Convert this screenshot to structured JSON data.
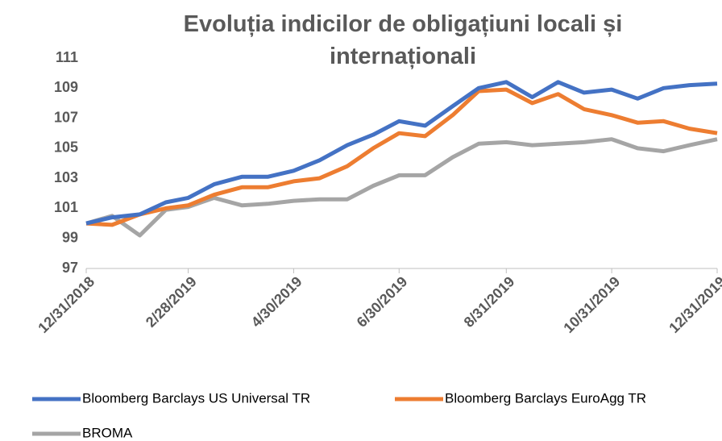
{
  "chart_data": {
    "type": "line",
    "title": "Evoluția indicilor de obligațiuni locali și internaționali",
    "x": [
      "12/31/2018",
      "1/15/2019",
      "1/31/2019",
      "2/15/2019",
      "2/28/2019",
      "3/15/2019",
      "3/31/2019",
      "4/15/2019",
      "4/30/2019",
      "5/15/2019",
      "5/31/2019",
      "6/15/2019",
      "6/30/2019",
      "7/15/2019",
      "7/31/2019",
      "8/15/2019",
      "8/31/2019",
      "9/15/2019",
      "9/30/2019",
      "10/15/2019",
      "10/31/2019",
      "11/15/2019",
      "11/30/2019",
      "12/15/2019",
      "12/31/2019"
    ],
    "series": [
      {
        "name": "Bloomberg Barclays US Universal TR",
        "color": "#4472c4",
        "values": [
          100,
          100.4,
          100.6,
          101.4,
          101.7,
          102.6,
          103.1,
          103.1,
          103.5,
          104.2,
          105.2,
          105.9,
          106.8,
          106.5,
          107.8,
          109.0,
          109.4,
          108.4,
          109.4,
          108.7,
          108.9,
          108.3,
          109.0,
          109.2,
          109.3
        ]
      },
      {
        "name": "Bloomberg Barclays EuroAgg TR",
        "color": "#ed7d31",
        "values": [
          100,
          99.9,
          100.6,
          101.0,
          101.2,
          101.9,
          102.4,
          102.4,
          102.8,
          103.0,
          103.8,
          105.0,
          106.0,
          105.8,
          107.2,
          108.8,
          108.9,
          108.0,
          108.6,
          107.6,
          107.2,
          106.7,
          106.8,
          106.3,
          106.0
        ]
      },
      {
        "name": "BROMA",
        "color": "#a5a5a5",
        "values": [
          100,
          100.5,
          99.2,
          100.9,
          101.1,
          101.7,
          101.2,
          101.3,
          101.5,
          101.6,
          101.6,
          102.5,
          103.2,
          103.2,
          104.4,
          105.3,
          105.4,
          105.2,
          105.3,
          105.4,
          105.6,
          105.0,
          104.8,
          105.2,
          105.6
        ]
      }
    ],
    "xlim": [
      "12/31/2018",
      "12/31/2019"
    ],
    "xticks": [
      "12/31/2018",
      "2/28/2019",
      "4/30/2019",
      "6/30/2019",
      "8/31/2019",
      "10/31/2019",
      "12/31/2019"
    ],
    "ylim": [
      97,
      111
    ],
    "yticks": [
      97,
      99,
      101,
      103,
      105,
      107,
      109,
      111
    ],
    "grid": false
  }
}
